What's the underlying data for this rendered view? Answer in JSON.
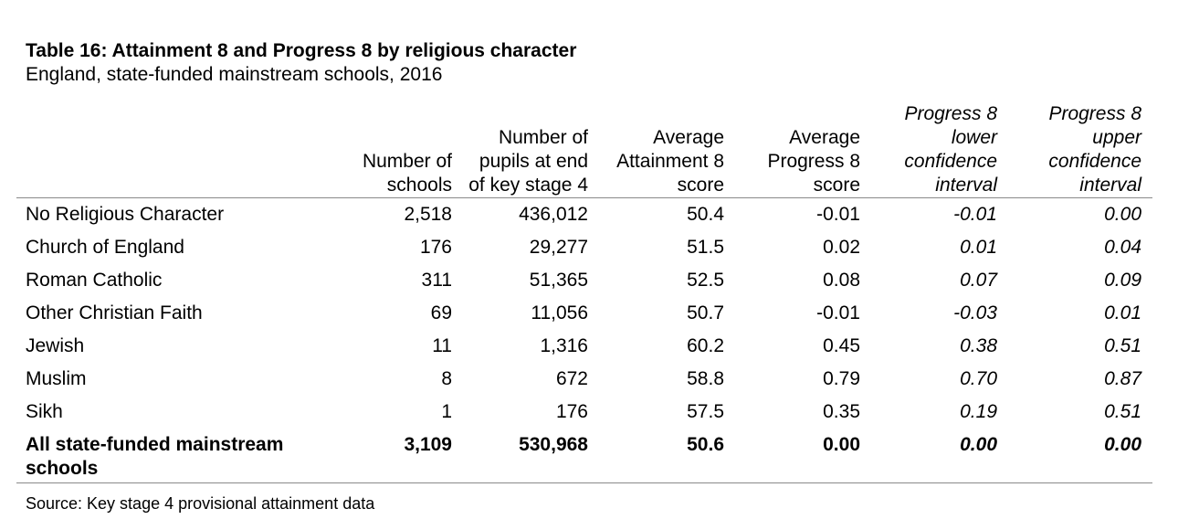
{
  "title": "Table 16: Attainment 8 and Progress 8 by religious character",
  "subtitle": "England, state-funded mainstream schools, 2016",
  "columns": [
    "",
    "Number of schools",
    "Number of pupils at end of key stage 4",
    "Average Attainment 8 score",
    "Average Progress 8 score",
    "Progress 8 lower confidence interval",
    "Progress 8 upper confidence interval"
  ],
  "rows": [
    {
      "label": "No Religious Character",
      "schools": "2,518",
      "pupils": "436,012",
      "att8": "50.4",
      "p8": "-0.01",
      "lower": "-0.01",
      "upper": "0.00"
    },
    {
      "label": "Church of England",
      "schools": "176",
      "pupils": "29,277",
      "att8": "51.5",
      "p8": "0.02",
      "lower": "0.01",
      "upper": "0.04"
    },
    {
      "label": "Roman Catholic",
      "schools": "311",
      "pupils": "51,365",
      "att8": "52.5",
      "p8": "0.08",
      "lower": "0.07",
      "upper": "0.09"
    },
    {
      "label": "Other Christian Faith",
      "schools": "69",
      "pupils": "11,056",
      "att8": "50.7",
      "p8": "-0.01",
      "lower": "-0.03",
      "upper": "0.01"
    },
    {
      "label": "Jewish",
      "schools": "11",
      "pupils": "1,316",
      "att8": "60.2",
      "p8": "0.45",
      "lower": "0.38",
      "upper": "0.51"
    },
    {
      "label": "Muslim",
      "schools": "8",
      "pupils": "672",
      "att8": "58.8",
      "p8": "0.79",
      "lower": "0.70",
      "upper": "0.87"
    },
    {
      "label": "Sikh",
      "schools": "1",
      "pupils": "176",
      "att8": "57.5",
      "p8": "0.35",
      "lower": "0.19",
      "upper": "0.51"
    }
  ],
  "total": {
    "label": "All state-funded mainstream schools",
    "schools": "3,109",
    "pupils": "530,968",
    "att8": "50.6",
    "p8": "0.00",
    "lower": "0.00",
    "upper": "0.00"
  },
  "source": "Source: Key stage 4 provisional attainment data"
}
